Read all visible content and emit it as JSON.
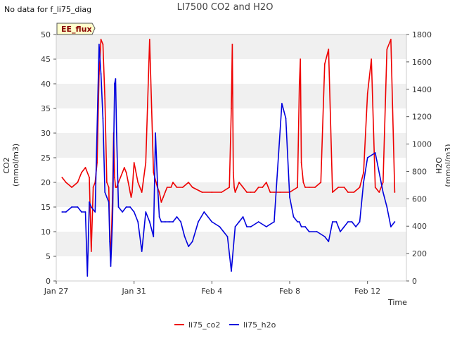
{
  "header": {
    "title": "LI7500 CO2 and H2O",
    "no_data": "No data for f_li75_diag",
    "badge": "EE_flux"
  },
  "chart_data": {
    "type": "line",
    "title": "LI7500 CO2 and H2O",
    "xlabel": "Time",
    "ylabel_left": "CO2 (mmol/m3)",
    "ylabel_right": "H2O (mmol/m3)",
    "x_ticks": [
      "Jan 27",
      "Jan 31",
      "Feb 4",
      "Feb 8",
      "Feb 12"
    ],
    "x_tick_days": [
      0,
      4,
      8,
      12,
      16
    ],
    "xlim_days": [
      0,
      18
    ],
    "ylim_left": [
      0,
      50
    ],
    "ylim_right": [
      0,
      1800
    ],
    "y_ticks_left": [
      0,
      5,
      10,
      15,
      20,
      25,
      30,
      35,
      40,
      45,
      50
    ],
    "y_ticks_right": [
      0,
      200,
      400,
      600,
      800,
      1000,
      1200,
      1400,
      1600,
      1800
    ],
    "grid": "horizontal bands",
    "legend_position": "bottom-center",
    "colors": {
      "co2": "#ee0000",
      "h2o": "#0000dd",
      "band": "#f0f0f0",
      "badge_bg": "#ffffcc",
      "badge_text": "#880000"
    },
    "series": [
      {
        "name": "li75_co2",
        "axis": "left",
        "x_days": [
          0.3,
          0.5,
          0.8,
          1.1,
          1.3,
          1.5,
          1.7,
          1.8,
          1.9,
          2.0,
          2.1,
          2.2,
          2.3,
          2.4,
          2.5,
          2.6,
          2.7,
          2.75,
          2.8,
          2.9,
          2.95,
          3.0,
          3.05,
          3.1,
          3.2,
          3.3,
          3.4,
          3.5,
          3.6,
          3.7,
          3.75,
          3.8,
          3.85,
          3.9,
          4.0,
          4.2,
          4.4,
          4.6,
          4.8,
          5.0,
          5.2,
          5.3,
          5.4,
          5.5,
          5.6,
          5.7,
          5.8,
          5.9,
          6.0,
          6.2,
          6.5,
          6.8,
          7.0,
          7.5,
          8.0,
          8.5,
          8.9,
          9.0,
          9.05,
          9.1,
          9.15,
          9.2,
          9.3,
          9.4,
          9.6,
          9.8,
          10.0,
          10.2,
          10.4,
          10.6,
          10.8,
          11.0,
          11.2,
          11.5,
          12.0,
          12.4,
          12.5,
          12.55,
          12.6,
          12.7,
          12.8,
          13.0,
          13.3,
          13.6,
          13.8,
          14.0,
          14.2,
          14.5,
          14.8,
          15.0,
          15.3,
          15.6,
          15.8,
          16.0,
          16.2,
          16.4,
          16.6,
          16.8,
          17.0,
          17.2,
          17.4
        ],
        "values": [
          21,
          20,
          19,
          20,
          22,
          23,
          21,
          6,
          19,
          20,
          24,
          42,
          49,
          48,
          37,
          20,
          19,
          10,
          4,
          18,
          30,
          21,
          19,
          19,
          20,
          21,
          22,
          23,
          22,
          20,
          19,
          18,
          17,
          18,
          24,
          20,
          18,
          24,
          49,
          22,
          19,
          18,
          16,
          17,
          18,
          19,
          19,
          19,
          20,
          19,
          19,
          20,
          19,
          18,
          18,
          18,
          19,
          35,
          48,
          22,
          19,
          18,
          19,
          20,
          19,
          18,
          18,
          18,
          19,
          19,
          20,
          18,
          18,
          18,
          18,
          19,
          40,
          45,
          24,
          20,
          19,
          19,
          19,
          20,
          44,
          47,
          18,
          19,
          19,
          18,
          18,
          19,
          22,
          38,
          45,
          19,
          18,
          20,
          47,
          49,
          18
        ]
      },
      {
        "name": "li75_h2o",
        "axis": "left",
        "x_days": [
          0.3,
          0.5,
          0.8,
          1.1,
          1.3,
          1.5,
          1.6,
          1.7,
          1.8,
          2.0,
          2.2,
          2.3,
          2.4,
          2.5,
          2.6,
          2.7,
          2.75,
          2.8,
          2.9,
          3.0,
          3.05,
          3.1,
          3.2,
          3.4,
          3.6,
          3.8,
          4.0,
          4.2,
          4.4,
          4.6,
          4.8,
          5.0,
          5.1,
          5.2,
          5.3,
          5.4,
          5.6,
          5.8,
          6.0,
          6.2,
          6.4,
          6.6,
          6.8,
          7.0,
          7.3,
          7.6,
          8.0,
          8.4,
          8.6,
          8.8,
          9.0,
          9.2,
          9.4,
          9.6,
          9.8,
          10.0,
          10.4,
          10.8,
          11.2,
          11.6,
          11.8,
          12.0,
          12.2,
          12.4,
          12.5,
          12.6,
          12.8,
          13.0,
          13.4,
          13.8,
          14.0,
          14.2,
          14.4,
          14.6,
          14.8,
          15.0,
          15.2,
          15.4,
          15.6,
          15.8,
          16.0,
          16.4,
          16.8,
          17.0,
          17.2,
          17.4
        ],
        "values": [
          14,
          14,
          15,
          15,
          14,
          14,
          1,
          16,
          15,
          14,
          48,
          42,
          33,
          18,
          17,
          16,
          8,
          3,
          13,
          40,
          41,
          30,
          15,
          14,
          15,
          15,
          14,
          12,
          6,
          14,
          12,
          9,
          30,
          20,
          13,
          12,
          12,
          12,
          12,
          13,
          12,
          9,
          7,
          8,
          12,
          14,
          12,
          11,
          10,
          9,
          2,
          11,
          12,
          13,
          11,
          11,
          12,
          11,
          12,
          36,
          33,
          17,
          13,
          12,
          12,
          11,
          11,
          10,
          10,
          9,
          8,
          12,
          12,
          10,
          11,
          12,
          12,
          11,
          12,
          20,
          25,
          26,
          18,
          15,
          11,
          12
        ]
      }
    ]
  },
  "legend": {
    "co2_label": "li75_co2",
    "h2o_label": "li75_h2o"
  }
}
